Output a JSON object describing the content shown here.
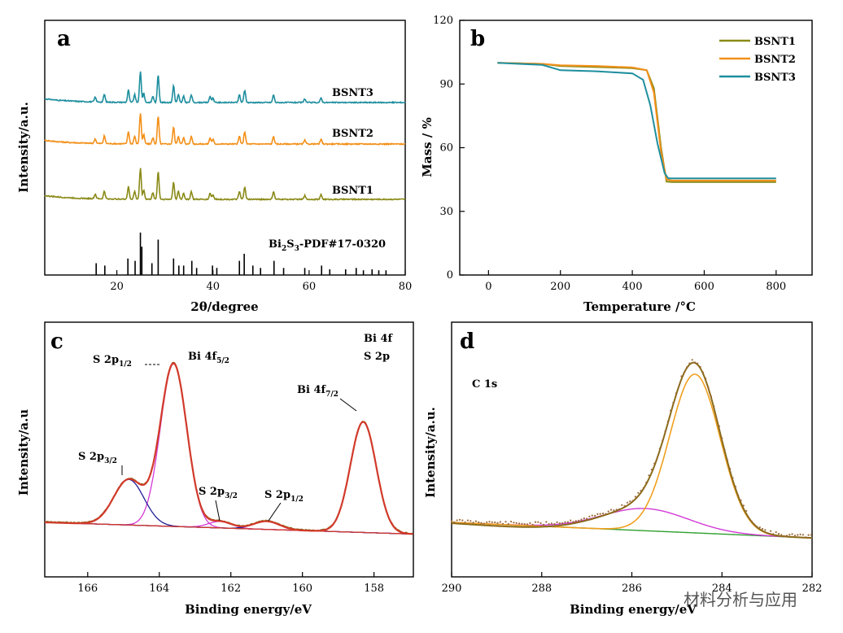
{
  "colors": {
    "bsnt1": "#8a8a18",
    "bsnt2": "#f39019",
    "bsnt3": "#1e8e9e",
    "envelope": "#d13a2a",
    "magenta": "#d23ad6",
    "navy": "#1e1e9a",
    "tan": "#8a6a1a",
    "bg_green": "#2fa02f",
    "fit_orange": "#f0a020",
    "raw_brown": "#9e6b3a"
  },
  "watermark": "材料分析与应用",
  "chart_data": [
    {
      "panel": "a",
      "type": "line",
      "xlabel": "2θ/degree",
      "ylabel": "Intensity/a.u.",
      "xlim": [
        5,
        80
      ],
      "xticks": [
        "20",
        "40",
        "60",
        "80"
      ],
      "series": [
        {
          "name": "BSNT3",
          "color_key": "bsnt3",
          "offset": 3.0
        },
        {
          "name": "BSNT2",
          "color_key": "bsnt2",
          "offset": 2.0
        },
        {
          "name": "BSNT1",
          "color_key": "bsnt1",
          "offset": 1.0
        }
      ],
      "peaks": [
        [
          15.5,
          0.15
        ],
        [
          17.4,
          0.25
        ],
        [
          22.4,
          0.4
        ],
        [
          23.7,
          0.25
        ],
        [
          24.9,
          1.0
        ],
        [
          25.6,
          0.3
        ],
        [
          27.5,
          0.2
        ],
        [
          28.6,
          0.9
        ],
        [
          31.8,
          0.55
        ],
        [
          32.8,
          0.25
        ],
        [
          33.9,
          0.2
        ],
        [
          35.5,
          0.25
        ],
        [
          39.4,
          0.2
        ],
        [
          40.0,
          0.15
        ],
        [
          45.5,
          0.25
        ],
        [
          46.6,
          0.4
        ],
        [
          52.6,
          0.25
        ],
        [
          59.1,
          0.12
        ],
        [
          62.5,
          0.15
        ]
      ],
      "reference_label": "Bi2S3-PDF#17-0320",
      "reference_sticks": [
        [
          15.7,
          0.25
        ],
        [
          17.5,
          0.2
        ],
        [
          22.3,
          0.35
        ],
        [
          23.8,
          0.3
        ],
        [
          24.9,
          0.9
        ],
        [
          25.2,
          0.6
        ],
        [
          27.3,
          0.25
        ],
        [
          28.6,
          0.75
        ],
        [
          31.8,
          0.35
        ],
        [
          32.9,
          0.2
        ],
        [
          33.9,
          0.2
        ],
        [
          35.6,
          0.3
        ],
        [
          36.6,
          0.15
        ],
        [
          39.9,
          0.2
        ],
        [
          40.8,
          0.15
        ],
        [
          45.5,
          0.3
        ],
        [
          46.5,
          0.45
        ],
        [
          48.3,
          0.2
        ],
        [
          49.9,
          0.15
        ],
        [
          52.7,
          0.3
        ],
        [
          54.7,
          0.15
        ],
        [
          59.1,
          0.15
        ],
        [
          62.6,
          0.2
        ],
        [
          64.3,
          0.12
        ],
        [
          67.6,
          0.12
        ],
        [
          69.8,
          0.15
        ],
        [
          71.3,
          0.1
        ],
        [
          73.1,
          0.12
        ],
        [
          74.5,
          0.1
        ],
        [
          76.0,
          0.1
        ]
      ]
    },
    {
      "panel": "b",
      "type": "line",
      "xlabel": "Temperature /°C",
      "ylabel": "Mass / %",
      "xlim": [
        -80,
        900
      ],
      "ylim": [
        0,
        120
      ],
      "xticks": [
        "0",
        "200",
        "400",
        "600",
        "800"
      ],
      "yticks": [
        "0",
        "30",
        "60",
        "90",
        "120"
      ],
      "series": [
        {
          "name": "BSNT1",
          "color_key": "bsnt1",
          "x": [
            25,
            150,
            200,
            300,
            400,
            440,
            460,
            480,
            495,
            510,
            800
          ],
          "y": [
            100,
            99.5,
            98.5,
            98,
            97.5,
            96.5,
            88,
            60,
            44,
            43.8,
            43.8
          ]
        },
        {
          "name": "BSNT2",
          "color_key": "bsnt2",
          "x": [
            25,
            150,
            200,
            300,
            400,
            440,
            460,
            480,
            495,
            510,
            800
          ],
          "y": [
            100,
            99.5,
            98.8,
            98.5,
            97.8,
            96.5,
            86,
            58,
            45,
            44.5,
            44.5
          ]
        },
        {
          "name": "BSNT3",
          "color_key": "bsnt3",
          "x": [
            25,
            150,
            200,
            300,
            400,
            430,
            450,
            470,
            490,
            500,
            800
          ],
          "y": [
            100,
            99,
            96.5,
            96,
            95,
            92,
            80,
            62,
            48,
            45.5,
            45.5
          ]
        }
      ]
    },
    {
      "panel": "c",
      "type": "line",
      "xlabel": "Binding energy/eV",
      "ylabel": "Intensity/a.u",
      "xlim": [
        167.2,
        156.9
      ],
      "xticks": [
        "166",
        "164",
        "162",
        "160",
        "158"
      ],
      "annotations": [
        "Bi 4f",
        "S 2p"
      ],
      "peak_labels": [
        "S 2p1/2",
        "Bi 4f5/2",
        "Bi 4f7/2",
        "S 2p3/2",
        "S 2p3/2",
        "S 2p1/2"
      ]
    },
    {
      "panel": "d",
      "type": "line",
      "xlabel": "Binding energy/eV",
      "ylabel": "Intensity/a.u.",
      "xlim": [
        290,
        282
      ],
      "xticks": [
        "290",
        "288",
        "286",
        "284",
        "282"
      ],
      "annotations": [
        "C 1s"
      ]
    }
  ]
}
